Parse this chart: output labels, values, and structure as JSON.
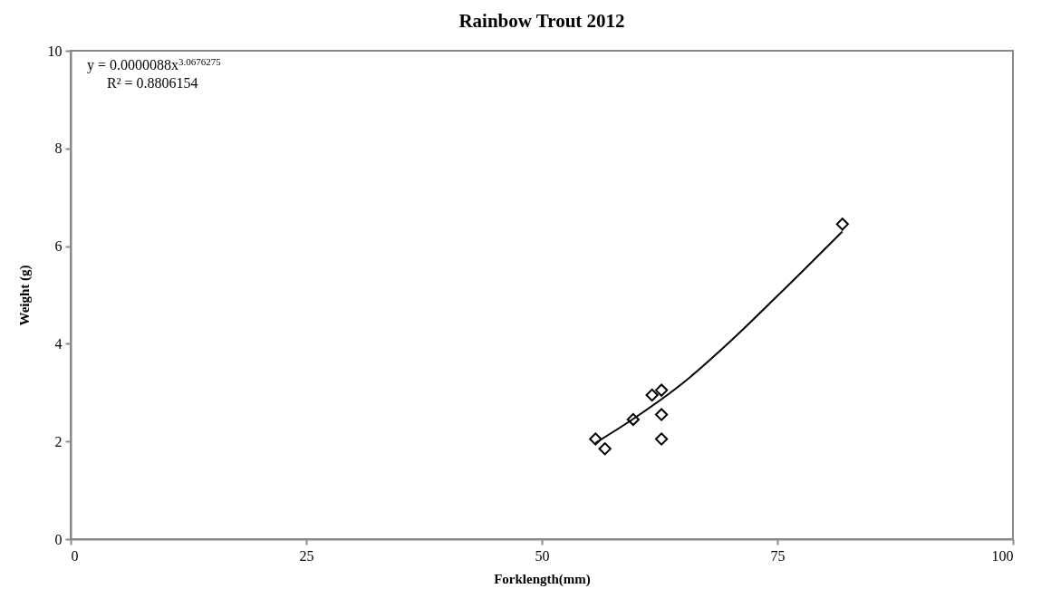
{
  "chart_data": {
    "type": "scatter",
    "title": "Rainbow Trout 2012",
    "xlabel": "Forklength(mm)",
    "ylabel": "Weight (g)",
    "xlim": [
      0,
      100
    ],
    "xticks": [
      0,
      25,
      50,
      75,
      100
    ],
    "ylim": [
      0,
      10
    ],
    "yticks": [
      0,
      2,
      4,
      6,
      8,
      10
    ],
    "grid": false,
    "series": [
      {
        "marker": "diamond",
        "color": "#000000",
        "x": [
          55.7,
          56.7,
          59.7,
          61.7,
          62.7,
          62.7,
          62.7,
          81.9
        ],
        "values": [
          2.05,
          1.85,
          2.45,
          2.95,
          3.05,
          2.55,
          2.05,
          6.45
        ]
      },
      {
        "type": "line",
        "marker": "none",
        "color": "#000000",
        "x": [
          55.7,
          60,
          65,
          70,
          75,
          81.9
        ],
        "values": [
          1.97,
          2.5,
          3.2,
          4.05,
          4.98,
          6.3
        ]
      }
    ],
    "annotations": [
      "y = 0.0000088x$^{3.0676275}$",
      "R² = 0.8806154"
    ]
  }
}
